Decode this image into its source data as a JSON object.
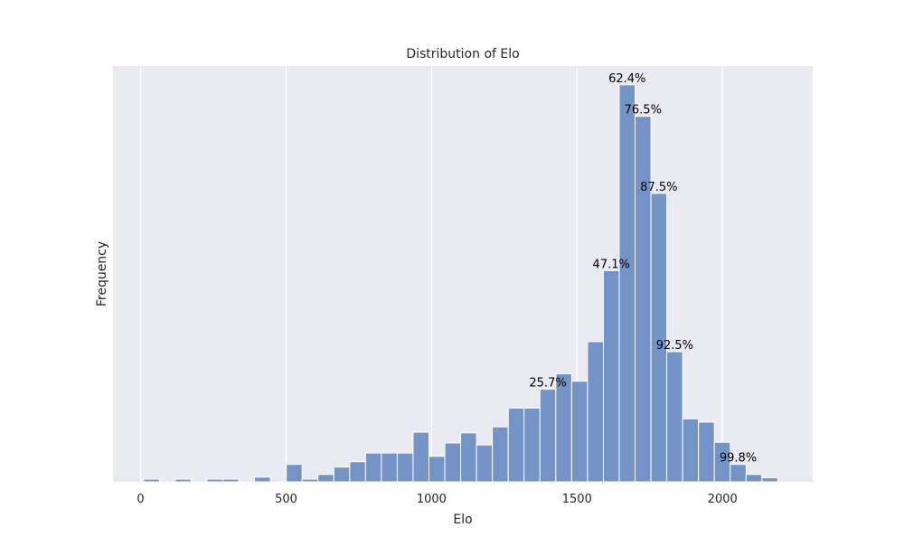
{
  "chart_data": {
    "type": "bar",
    "title": "Distribution of Elo",
    "xlabel": "Elo",
    "ylabel": "Frequency",
    "xlim": [
      -95,
      2310
    ],
    "ylim": [
      0,
      62
    ],
    "xticks": [
      0,
      500,
      1000,
      1500,
      2000
    ],
    "xtick_labels": [
      "0",
      "500",
      "1000",
      "1500",
      "2000"
    ],
    "y_tick_labels_shown": false,
    "grid": "vertical",
    "bar_color": "#7493c6",
    "background_color": "#eaeaf2",
    "grid_color": "#ffffff",
    "bin_width": 54.5,
    "bins": [
      {
        "x0": 10,
        "x1": 64.5,
        "count": 0.4
      },
      {
        "x0": 64.5,
        "x1": 119,
        "count": 0
      },
      {
        "x0": 119,
        "x1": 173.5,
        "count": 0.4
      },
      {
        "x0": 173.5,
        "x1": 228,
        "count": 0
      },
      {
        "x0": 228,
        "x1": 282.5,
        "count": 0.4
      },
      {
        "x0": 282.5,
        "x1": 337,
        "count": 0.4
      },
      {
        "x0": 337,
        "x1": 391.5,
        "count": 0
      },
      {
        "x0": 391.5,
        "x1": 446,
        "count": 0.7
      },
      {
        "x0": 446,
        "x1": 500.5,
        "count": 0
      },
      {
        "x0": 500.5,
        "x1": 555,
        "count": 2.6
      },
      {
        "x0": 555,
        "x1": 609.5,
        "count": 0.4
      },
      {
        "x0": 609.5,
        "x1": 664,
        "count": 1.1
      },
      {
        "x0": 664,
        "x1": 718.5,
        "count": 2.2
      },
      {
        "x0": 718.5,
        "x1": 773,
        "count": 3.0
      },
      {
        "x0": 773,
        "x1": 827.5,
        "count": 4.3
      },
      {
        "x0": 827.5,
        "x1": 882,
        "count": 4.3
      },
      {
        "x0": 882,
        "x1": 936.5,
        "count": 4.3
      },
      {
        "x0": 936.5,
        "x1": 991,
        "count": 7.4
      },
      {
        "x0": 991,
        "x1": 1045.5,
        "count": 3.8
      },
      {
        "x0": 1045.5,
        "x1": 1100,
        "count": 5.8
      },
      {
        "x0": 1100,
        "x1": 1154.5,
        "count": 7.3
      },
      {
        "x0": 1154.5,
        "x1": 1209,
        "count": 5.5
      },
      {
        "x0": 1209,
        "x1": 1263.5,
        "count": 8.2
      },
      {
        "x0": 1263.5,
        "x1": 1318,
        "count": 11.0
      },
      {
        "x0": 1318,
        "x1": 1372.5,
        "count": 11.0
      },
      {
        "x0": 1372.5,
        "x1": 1427,
        "count": 13.8
      },
      {
        "x0": 1427,
        "x1": 1481.5,
        "count": 16.1
      },
      {
        "x0": 1481.5,
        "x1": 1536,
        "count": 15.0
      },
      {
        "x0": 1536,
        "x1": 1590.5,
        "count": 20.9
      },
      {
        "x0": 1590.5,
        "x1": 1645,
        "count": 31.5
      },
      {
        "x0": 1645,
        "x1": 1699.5,
        "count": 59.2
      },
      {
        "x0": 1699.5,
        "x1": 1754,
        "count": 54.5
      },
      {
        "x0": 1754,
        "x1": 1808.5,
        "count": 43.0
      },
      {
        "x0": 1808.5,
        "x1": 1863,
        "count": 19.4
      },
      {
        "x0": 1863,
        "x1": 1917.5,
        "count": 9.4
      },
      {
        "x0": 1917.5,
        "x1": 1972,
        "count": 8.9
      },
      {
        "x0": 1972,
        "x1": 2026.5,
        "count": 5.9
      },
      {
        "x0": 2026.5,
        "x1": 2081,
        "count": 2.6
      },
      {
        "x0": 2081,
        "x1": 2135.5,
        "count": 1.1
      },
      {
        "x0": 2135.5,
        "x1": 2190,
        "count": 0.6
      }
    ],
    "annotations": [
      {
        "text": "25.7%",
        "bin_index": 25
      },
      {
        "text": "47.1%",
        "bin_index": 29
      },
      {
        "text": "62.4%",
        "bin_index": 30
      },
      {
        "text": "76.5%",
        "bin_index": 31
      },
      {
        "text": "87.5%",
        "bin_index": 32
      },
      {
        "text": "92.5%",
        "bin_index": 33
      },
      {
        "text": "99.8%",
        "bin_index": 37
      }
    ]
  }
}
